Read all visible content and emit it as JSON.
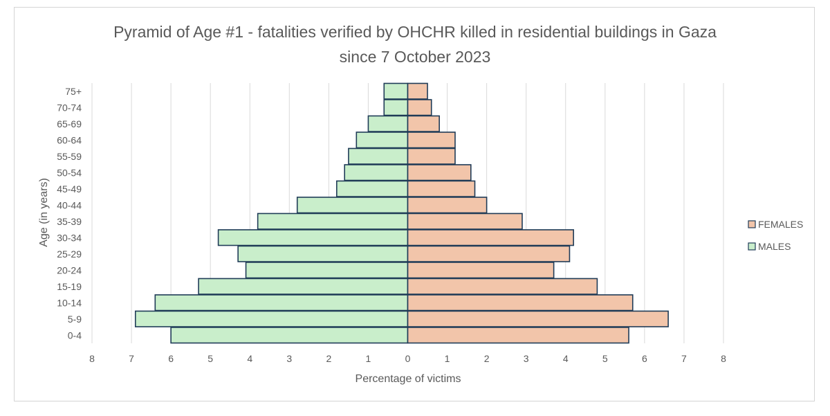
{
  "chart_data": {
    "type": "bar",
    "orientation": "horizontal-pyramid",
    "title_line1": "Pyramid of Age #1 - fatalities verified by OHCHR killed in residential buildings in Gaza",
    "title_line2": "since 7 October 2023",
    "xlabel": "Percentage of victims",
    "ylabel": "Age (in years)",
    "xlim": [
      -8,
      8
    ],
    "xticks": [
      -8,
      -7,
      -6,
      -5,
      -4,
      -3,
      -2,
      -1,
      0,
      1,
      2,
      3,
      4,
      5,
      6,
      7,
      8
    ],
    "xtick_labels": [
      "8",
      "7",
      "6",
      "5",
      "4",
      "3",
      "2",
      "1",
      "0",
      "1",
      "2",
      "3",
      "4",
      "5",
      "6",
      "7",
      "8"
    ],
    "grid": true,
    "legend_position": "right",
    "categories": [
      "0-4",
      "5-9",
      "10-14",
      "15-19",
      "20-24",
      "25-29",
      "30-34",
      "35-39",
      "40-44",
      "45-49",
      "50-54",
      "55-59",
      "60-64",
      "65-69",
      "70-74",
      "75+"
    ],
    "series": [
      {
        "name": "FEMALES",
        "color": "#f2c5aa",
        "values": [
          5.6,
          6.6,
          5.7,
          4.8,
          3.7,
          4.1,
          4.2,
          2.9,
          2.0,
          1.7,
          1.6,
          1.2,
          1.2,
          0.8,
          0.6,
          0.5
        ]
      },
      {
        "name": "MALES",
        "color": "#c9eecb",
        "values": [
          6.0,
          6.9,
          6.4,
          5.3,
          4.1,
          4.3,
          4.8,
          3.8,
          2.8,
          1.8,
          1.6,
          1.5,
          1.3,
          1.0,
          0.6,
          0.6
        ]
      }
    ],
    "edge_color": "#1f3b57"
  }
}
